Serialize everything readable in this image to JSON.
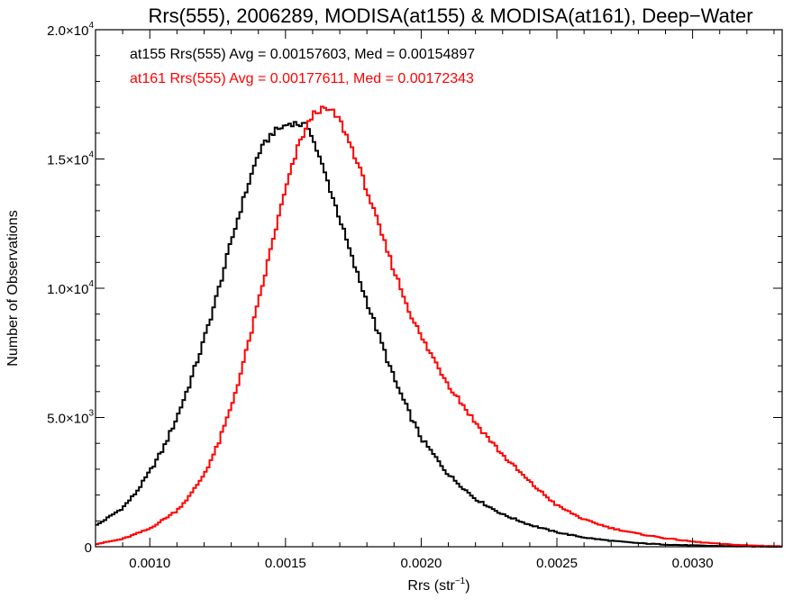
{
  "chart_data": {
    "type": "line",
    "title": "Rrs(555), 2006289, MODISA(at155) & MODISA(at161), Deep−Water",
    "xlabel": "Rrs (str",
    "xlabel_sup": "−1",
    "xlabel_tail": ")",
    "ylabel": "Number of Observations",
    "xlim": [
      0.0008,
      0.00333
    ],
    "ylim": [
      0,
      20000
    ],
    "grid": false,
    "xticks": [
      {
        "value": 0.001,
        "label": "0.0010"
      },
      {
        "value": 0.0015,
        "label": "0.0015"
      },
      {
        "value": 0.002,
        "label": "0.0020"
      },
      {
        "value": 0.0025,
        "label": "0.0025"
      },
      {
        "value": 0.003,
        "label": "0.0030"
      }
    ],
    "yticks": [
      {
        "value": 0,
        "mant": "0",
        "exp": ""
      },
      {
        "value": 5000,
        "mant": "5.0×10",
        "exp": "3"
      },
      {
        "value": 10000,
        "mant": "1.0×10",
        "exp": "4"
      },
      {
        "value": 15000,
        "mant": "1.5×10",
        "exp": "4"
      },
      {
        "value": 20000,
        "mant": "2.0×10",
        "exp": "4"
      }
    ],
    "annotations": [
      {
        "text": "at155 Rrs(555) Avg = 0.00157603, Med = 0.00154897",
        "color": "#000000"
      },
      {
        "text": "at161 Rrs(555) Avg = 0.00177611, Med = 0.00172343",
        "color": "#ff0000"
      }
    ],
    "series": [
      {
        "color": "#000000",
        "x": [
          0.0008,
          0.0009,
          0.00095,
          0.001,
          0.00105,
          0.0011,
          0.00115,
          0.0012,
          0.00125,
          0.0013,
          0.00135,
          0.0014,
          0.00145,
          0.0015,
          0.00152,
          0.00155,
          0.00157,
          0.00159,
          0.0016,
          0.00165,
          0.0017,
          0.00175,
          0.0018,
          0.00185,
          0.0019,
          0.00195,
          0.002,
          0.0021,
          0.0022,
          0.0023,
          0.0024,
          0.0025,
          0.0026,
          0.0027,
          0.0028,
          0.0029,
          0.003,
          0.0031,
          0.0032,
          0.00333
        ],
        "values": [
          800,
          1500,
          2100,
          2900,
          3800,
          5000,
          6400,
          8000,
          9800,
          11800,
          13600,
          15200,
          16000,
          16300,
          16400,
          16350,
          16300,
          16200,
          15800,
          14300,
          12700,
          11000,
          9500,
          8000,
          6500,
          5300,
          4200,
          2800,
          1850,
          1250,
          850,
          560,
          360,
          230,
          140,
          85,
          50,
          28,
          15,
          5
        ]
      },
      {
        "color": "#ff0000",
        "x": [
          0.0008,
          0.0009,
          0.001,
          0.0011,
          0.00115,
          0.0012,
          0.00125,
          0.0013,
          0.00135,
          0.0014,
          0.00145,
          0.0015,
          0.00155,
          0.0016,
          0.00162,
          0.00165,
          0.00167,
          0.0017,
          0.00175,
          0.0018,
          0.00185,
          0.0019,
          0.00195,
          0.002,
          0.0021,
          0.0022,
          0.0023,
          0.0024,
          0.0025,
          0.0026,
          0.0027,
          0.0028,
          0.0029,
          0.003,
          0.0031,
          0.0032,
          0.00333
        ],
        "values": [
          100,
          300,
          700,
          1400,
          2000,
          2800,
          3900,
          5400,
          7300,
          9400,
          11700,
          13800,
          15600,
          16700,
          16900,
          16900,
          16850,
          16500,
          15300,
          13800,
          12200,
          10700,
          9300,
          8100,
          6300,
          4800,
          3550,
          2500,
          1600,
          1050,
          720,
          500,
          330,
          200,
          110,
          55,
          15
        ]
      }
    ]
  }
}
